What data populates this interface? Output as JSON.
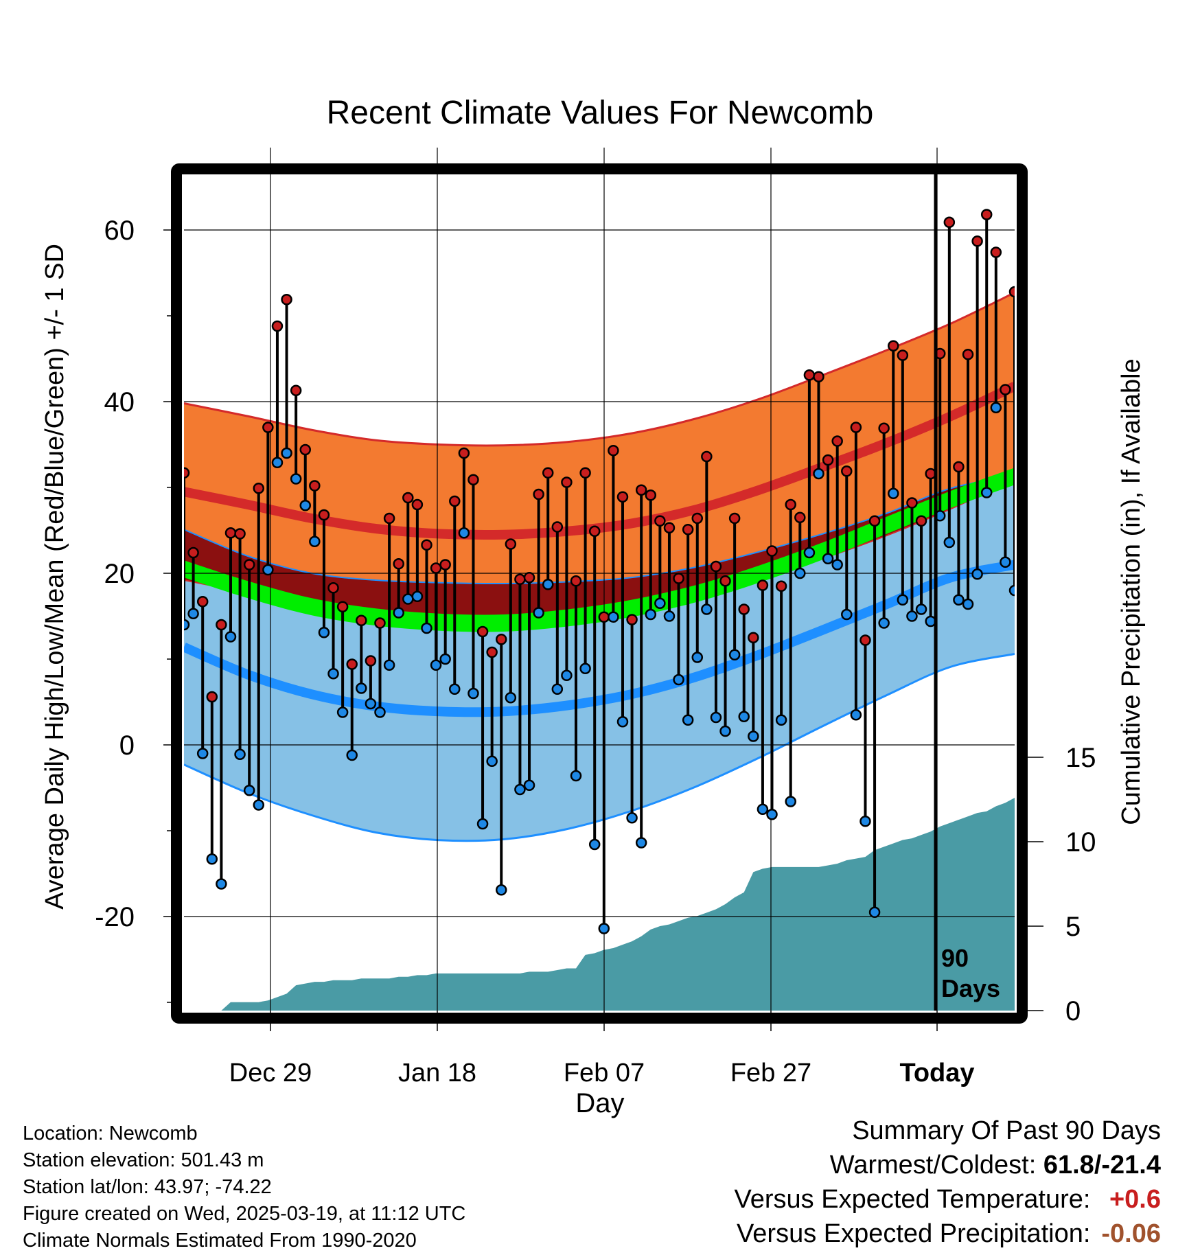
{
  "chart_data": {
    "type": "line",
    "title": "Recent Climate Values For Newcomb",
    "xlabel": "Day",
    "ylabel": "Average Daily High/Low/Mean (Red/Blue/Green) +/- 1 SD",
    "y2label": "Cumulative Precipitation (in), If Available",
    "x_tick_labels": [
      "Dec 29",
      "Jan 18",
      "Feb 07",
      "Feb 27",
      "Today"
    ],
    "ylim": [
      -32,
      70
    ],
    "y_ticks": [
      -20,
      0,
      20,
      40,
      60
    ],
    "y2lim": [
      0,
      30
    ],
    "y2_ticks": [
      0,
      5,
      10,
      15
    ],
    "today_marker_label": "90 Days",
    "grid": true,
    "bands": {
      "normal_high": [
        29.5,
        28.0,
        26.4,
        25.2,
        24.6,
        24.5,
        24.9,
        25.8,
        27.4,
        29.7,
        32.4,
        35.2,
        38.3,
        41.8
      ],
      "high_sd": [
        10.3,
        10.3,
        10.3,
        10.3,
        10.4,
        10.4,
        10.4,
        10.5,
        10.6,
        10.6,
        10.7,
        10.8,
        10.8,
        10.9
      ],
      "normal_low": [
        11.4,
        8.2,
        5.9,
        4.5,
        3.9,
        3.9,
        4.6,
        5.9,
        7.9,
        10.5,
        13.4,
        16.4,
        19.5,
        21.0
      ],
      "low_sd": [
        13.7,
        13.8,
        14.1,
        14.7,
        15.0,
        14.9,
        14.4,
        13.6,
        12.8,
        12.0,
        11.2,
        10.6,
        10.4,
        10.4
      ],
      "normal_mean": [
        20.5,
        18.1,
        16.1,
        14.9,
        14.3,
        14.2,
        14.8,
        15.9,
        17.6,
        19.9,
        22.6,
        25.6,
        28.6,
        31.3
      ],
      "mean_sd": [
        1.0,
        1.0,
        1.0,
        1.0,
        1.0,
        1.0,
        1.0,
        1.0,
        1.0,
        1.0,
        1.0,
        1.0,
        1.0,
        1.0
      ],
      "colors": {
        "high_band": "#f37a30",
        "high_line": "#d42a2a",
        "low_band": "#86c1e6",
        "low_line": "#1e8fff",
        "mean_band": "#00ee00",
        "overlap": "#8b1010",
        "precip": "#4a9ba5"
      }
    },
    "series": [
      {
        "name": "High",
        "color": "#c81e1e",
        "values": [
          31.7,
          22.4,
          16.7,
          5.6,
          14.0,
          24.7,
          24.6,
          21.0,
          29.9,
          37.0,
          48.8,
          51.9,
          41.3,
          34.4,
          30.2,
          26.8,
          18.3,
          16.1,
          9.4,
          14.5,
          9.8,
          14.2,
          26.4,
          21.1,
          28.8,
          28.0,
          23.3,
          20.6,
          21.0,
          28.4,
          34.0,
          30.9,
          13.2,
          10.8,
          12.3,
          23.4,
          19.3,
          19.5,
          29.2,
          31.7,
          25.4,
          30.6,
          19.1,
          31.7,
          24.9,
          14.9,
          34.3,
          28.9,
          14.6,
          29.7,
          29.1,
          26.1,
          25.3,
          19.4,
          25.1,
          26.4,
          33.6,
          20.8,
          19.1,
          26.4,
          15.8,
          12.5,
          18.6,
          22.6,
          18.5,
          28.0,
          26.5,
          43.1,
          42.9,
          33.2,
          35.4,
          31.9,
          37.0,
          12.2,
          26.1,
          36.9,
          46.5,
          45.4,
          28.2,
          26.1,
          31.6,
          45.6,
          60.9,
          32.4,
          45.5,
          58.7,
          61.8,
          57.4,
          41.4,
          52.8
        ]
      },
      {
        "name": "Low",
        "color": "#1e88e5",
        "values": [
          14.0,
          15.3,
          -1.0,
          -13.3,
          -16.2,
          12.6,
          -1.1,
          -5.3,
          -7.0,
          20.4,
          32.9,
          34.0,
          31.0,
          27.9,
          23.7,
          13.1,
          8.3,
          3.8,
          -1.2,
          6.6,
          4.8,
          3.8,
          9.3,
          15.4,
          17.0,
          17.3,
          13.6,
          9.3,
          10.0,
          6.5,
          24.7,
          6.0,
          -9.2,
          -1.9,
          -16.9,
          5.5,
          -5.2,
          -4.7,
          15.4,
          18.7,
          6.5,
          8.1,
          -3.6,
          8.9,
          -11.6,
          -21.4,
          14.9,
          2.7,
          -8.5,
          -11.4,
          15.2,
          16.5,
          15.0,
          7.6,
          2.9,
          10.2,
          15.8,
          3.2,
          1.6,
          10.5,
          3.3,
          1.0,
          -7.5,
          -8.1,
          2.9,
          -6.6,
          20.0,
          22.4,
          31.6,
          21.7,
          21.0,
          15.2,
          3.5,
          -8.9,
          -19.5,
          14.2,
          29.3,
          16.9,
          15.0,
          15.8,
          14.4,
          26.7,
          23.6,
          16.9,
          16.4,
          19.9,
          29.4,
          39.3,
          21.3,
          18.0
        ]
      }
    ],
    "precip_cumulative": [
      0,
      0,
      0,
      0,
      0,
      0.5,
      0.5,
      0.5,
      0.5,
      0.6,
      0.8,
      1.0,
      1.5,
      1.6,
      1.7,
      1.7,
      1.8,
      1.8,
      1.8,
      1.9,
      1.9,
      1.9,
      1.9,
      2.0,
      2.0,
      2.1,
      2.1,
      2.2,
      2.2,
      2.2,
      2.2,
      2.2,
      2.2,
      2.2,
      2.2,
      2.2,
      2.2,
      2.3,
      2.3,
      2.3,
      2.4,
      2.5,
      2.5,
      3.3,
      3.4,
      3.6,
      3.7,
      3.9,
      4.1,
      4.4,
      4.8,
      5.0,
      5.1,
      5.3,
      5.5,
      5.6,
      5.8,
      6.0,
      6.3,
      6.7,
      7.0,
      8.2,
      8.4,
      8.5,
      8.5,
      8.5,
      8.5,
      8.5,
      8.5,
      8.6,
      8.7,
      8.9,
      9.0,
      9.1,
      9.5,
      9.7,
      9.9,
      10.1,
      10.2,
      10.4,
      10.6,
      10.9,
      11.1,
      11.3,
      11.5,
      11.7,
      11.8,
      12.1,
      12.3,
      12.6
    ]
  },
  "info": {
    "location": "Location: Newcomb",
    "elevation": "Station elevation: 501.43 m",
    "latlon": "Station lat/lon: 43.97; -74.22",
    "created": "Figure created on Wed, 2025-03-19, at 11:12 UTC",
    "normals": "Climate Normals Estimated From 1990-2020"
  },
  "summary": {
    "title": "Summary Of Past 90 Days",
    "warmest_coldest_label": "Warmest/Coldest:",
    "warmest_coldest_value": "61.8/-21.4",
    "temp_label": "Versus Expected Temperature:",
    "temp_value": "+0.6",
    "temp_color": "#c81e1e",
    "precip_label": "Versus Expected Precipitation:",
    "precip_value": "-0.06",
    "precip_color": "#a0522d"
  }
}
